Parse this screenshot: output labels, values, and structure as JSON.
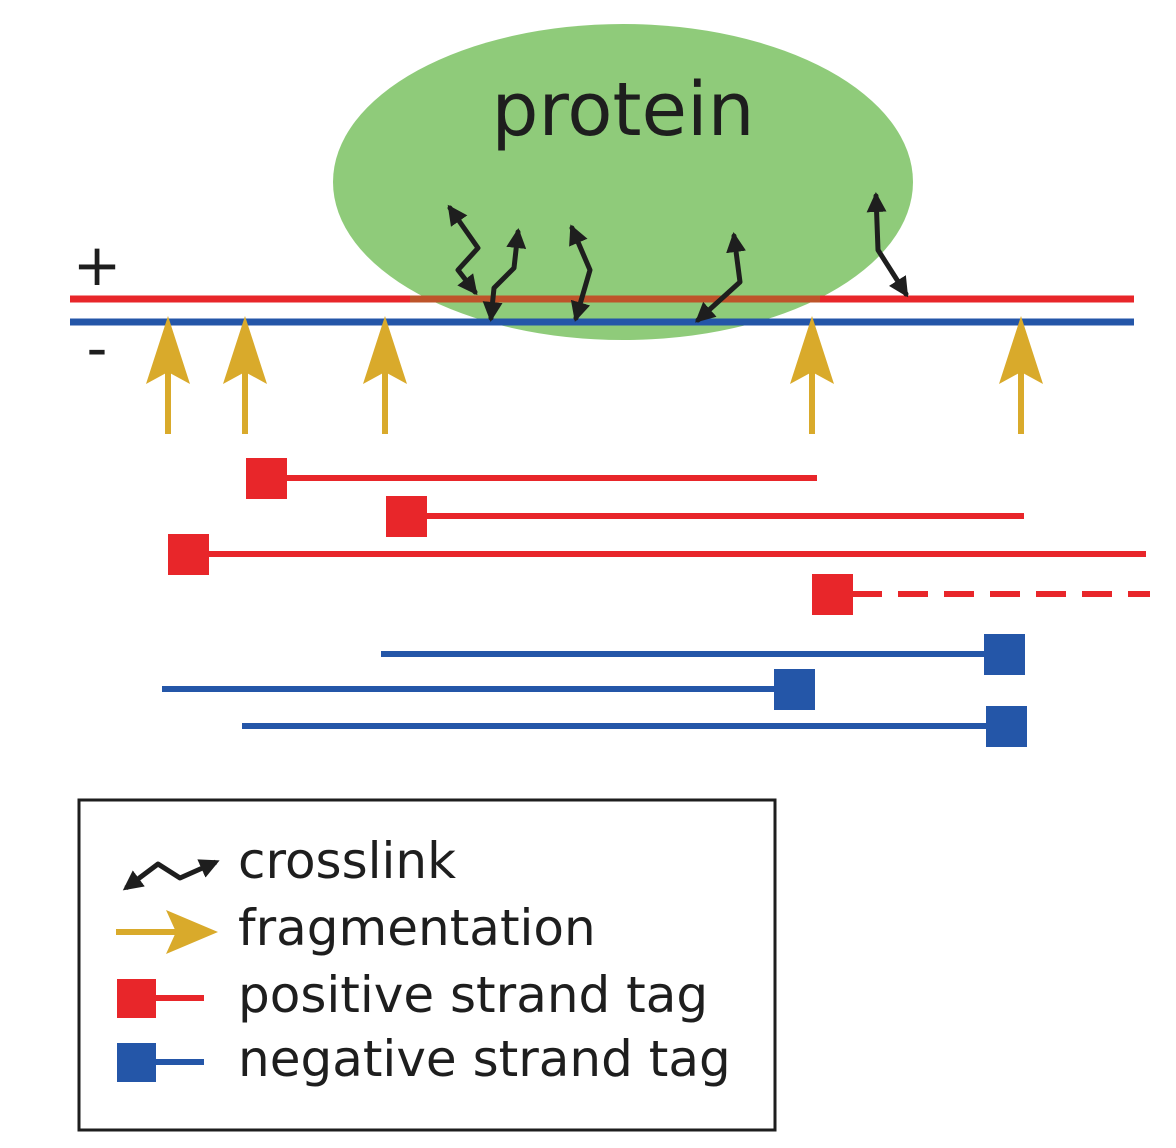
{
  "protein": {
    "label": "protein",
    "color": "#8fcb7a"
  },
  "strands": {
    "plus_label": "+",
    "minus_label": "-",
    "positive_color": "#e8262a",
    "negative_color": "#2456a8"
  },
  "colors": {
    "crosslink": "#1e1e1e",
    "fragmentation": "#d9aa2b"
  },
  "legend": {
    "items": [
      {
        "label": "crosslink",
        "symbol": "crosslink-icon"
      },
      {
        "label": "fragmentation",
        "symbol": "fragmentation-arrow-icon"
      },
      {
        "label": "positive strand tag",
        "symbol": "positive-tag-icon"
      },
      {
        "label": "negative strand tag",
        "symbol": "negative-tag-icon"
      }
    ]
  }
}
